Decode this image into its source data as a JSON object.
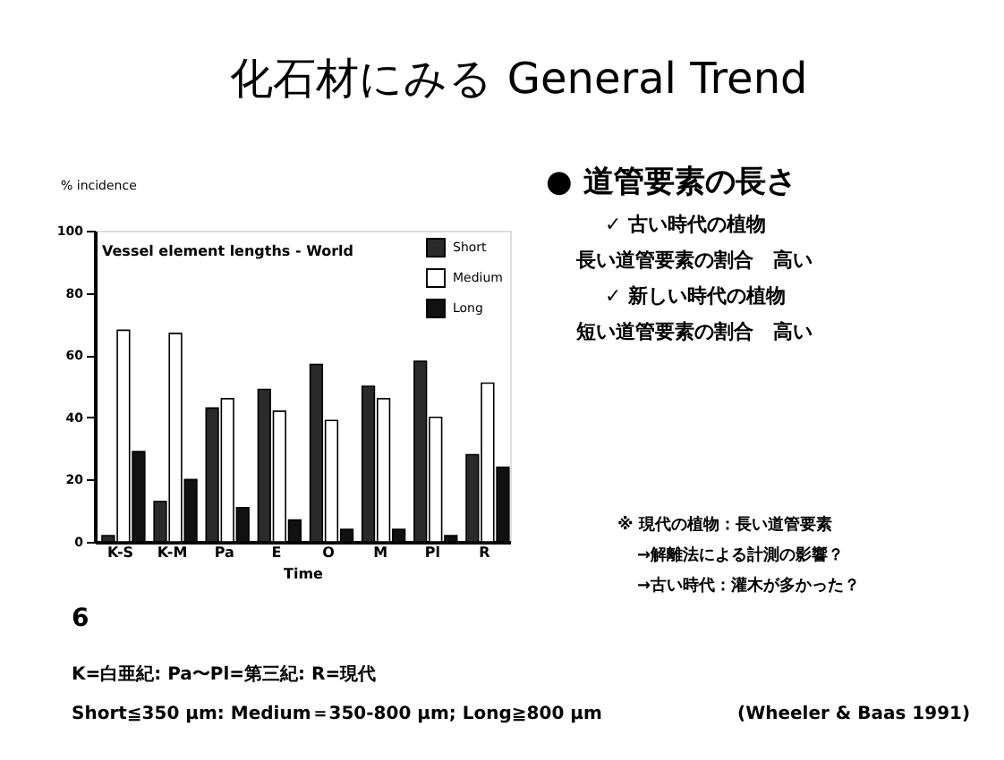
{
  "chart_data": {
    "type": "bar",
    "title": "化石材にみる General Trend",
    "subtitle": "Vessel element lengths - World",
    "ylabel": "% incidence",
    "xlabel": "Time",
    "categories": [
      "K-S",
      "K-M",
      "Pa",
      "E",
      "O",
      "M",
      "Pl",
      "R"
    ],
    "series": [
      {
        "name": "Short",
        "color": "#2a2a2a",
        "values": [
          2,
          13,
          43,
          49,
          57,
          50,
          58,
          28
        ]
      },
      {
        "name": "Medium",
        "color": "#ffffff",
        "values": [
          68,
          67,
          46,
          42,
          39,
          46,
          40,
          51
        ]
      },
      {
        "name": "Long",
        "color": "#111111",
        "values": [
          29,
          20,
          11,
          7,
          4,
          4,
          2,
          24
        ]
      }
    ],
    "ylim": [
      0,
      100
    ],
    "yticks": [
      0,
      20,
      40,
      60,
      80,
      100
    ],
    "grid": false,
    "legend": "top right",
    "annotations": [
      "● 道管要素の長さ",
      "✓ 古い時代の植物",
      "長い道管要素の割合　高い",
      "✓ 新しい時代の植物",
      "短い道管要素の割合　高い",
      "※ 現代の植物：長い道管要素",
      "→解離法による計測の影響？",
      "→古い時代：灌木が多かった？",
      "6",
      "K=白亜紀: Pa〜Pl=第三紀: R=現代",
      "Short≦350 μm: Medium＝350-800 μm; Long≧800 μm",
      "(Wheeler & Baas 1991)"
    ]
  }
}
